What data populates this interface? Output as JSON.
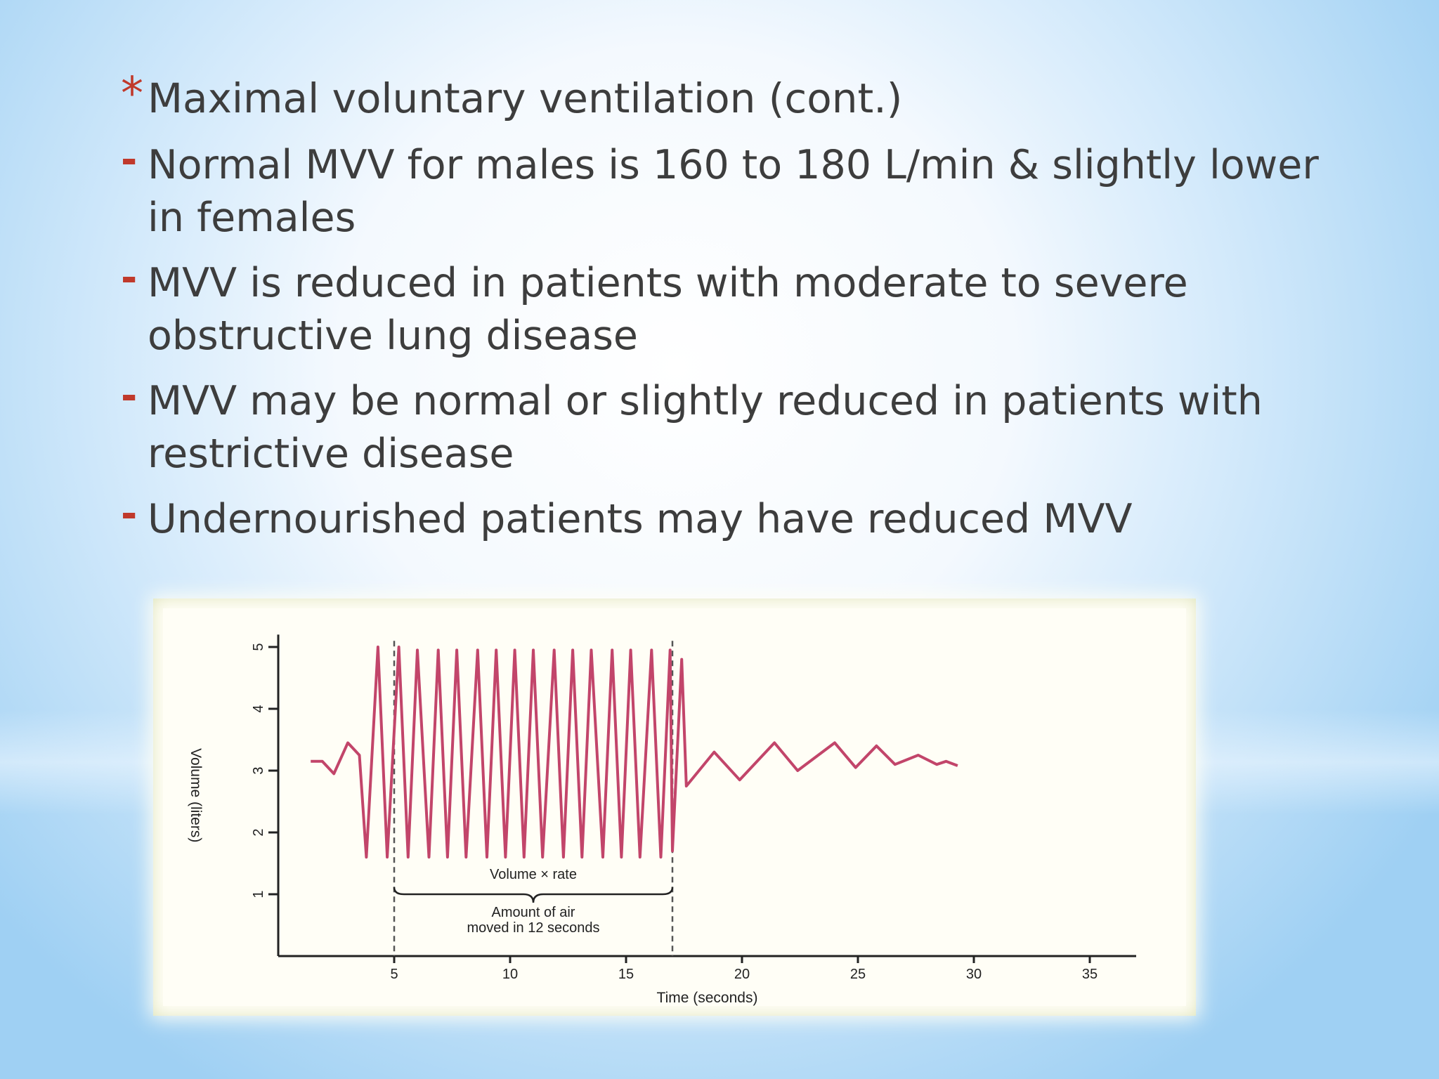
{
  "slide": {
    "title": "Maximal voluntary ventilation (cont.)",
    "title_marker": "*",
    "bullet_marker": "-",
    "bullets": [
      "Normal MVV for males is 160 to 180 L/min & slightly lower in females",
      "MVV is reduced in patients with moderate to severe obstructive lung disease",
      "MVV may be normal or slightly reduced in patients with restrictive disease",
      "Undernourished patients may have reduced MVV"
    ]
  },
  "colors": {
    "accent": "#c0392b",
    "text": "#3d3d3d",
    "trace": "#c2456a",
    "figure_frame": "#d8dfb0"
  },
  "chart_data": {
    "type": "line",
    "xlabel": "Time (seconds)",
    "ylabel": "Volume (liters)",
    "xlim": [
      0,
      37
    ],
    "ylim": [
      0,
      5.2
    ],
    "x_ticks": [
      5,
      10,
      15,
      20,
      25,
      30,
      35
    ],
    "y_ticks": [
      1,
      2,
      3,
      4,
      5
    ],
    "annotations": {
      "bracket_top": "Volume × rate",
      "bracket_bottom": "Amount of air moved in 12 seconds",
      "interval_start": 5,
      "interval_end": 17
    },
    "series": [
      {
        "values": [
          [
            1.4,
            3.15
          ],
          [
            1.9,
            3.15
          ],
          [
            2.4,
            2.95
          ],
          [
            3.0,
            3.45
          ],
          [
            3.5,
            3.25
          ],
          [
            3.8,
            1.6
          ],
          [
            4.3,
            5.0
          ],
          [
            4.7,
            1.6
          ],
          [
            5.2,
            5.0
          ],
          [
            5.6,
            1.6
          ],
          [
            6.0,
            4.95
          ],
          [
            6.5,
            1.6
          ],
          [
            6.9,
            4.95
          ],
          [
            7.3,
            1.6
          ],
          [
            7.7,
            4.95
          ],
          [
            8.1,
            1.6
          ],
          [
            8.6,
            4.95
          ],
          [
            9.0,
            1.6
          ],
          [
            9.4,
            4.95
          ],
          [
            9.8,
            1.6
          ],
          [
            10.2,
            4.95
          ],
          [
            10.6,
            1.6
          ],
          [
            11.0,
            4.95
          ],
          [
            11.4,
            1.6
          ],
          [
            11.9,
            4.95
          ],
          [
            12.3,
            1.6
          ],
          [
            12.7,
            4.95
          ],
          [
            13.1,
            1.6
          ],
          [
            13.5,
            4.95
          ],
          [
            14.0,
            1.6
          ],
          [
            14.4,
            4.95
          ],
          [
            14.8,
            1.6
          ],
          [
            15.2,
            4.95
          ],
          [
            15.6,
            1.6
          ],
          [
            16.1,
            4.95
          ],
          [
            16.5,
            1.6
          ],
          [
            16.9,
            4.95
          ],
          [
            17.0,
            1.7
          ],
          [
            17.4,
            4.8
          ],
          [
            17.6,
            2.75
          ],
          [
            18.8,
            3.3
          ],
          [
            19.9,
            2.85
          ],
          [
            21.4,
            3.45
          ],
          [
            22.4,
            3.0
          ],
          [
            24.0,
            3.45
          ],
          [
            24.9,
            3.05
          ],
          [
            25.8,
            3.4
          ],
          [
            26.6,
            3.1
          ],
          [
            27.6,
            3.25
          ],
          [
            28.4,
            3.1
          ],
          [
            28.8,
            3.15
          ],
          [
            29.3,
            3.08
          ]
        ]
      }
    ]
  }
}
